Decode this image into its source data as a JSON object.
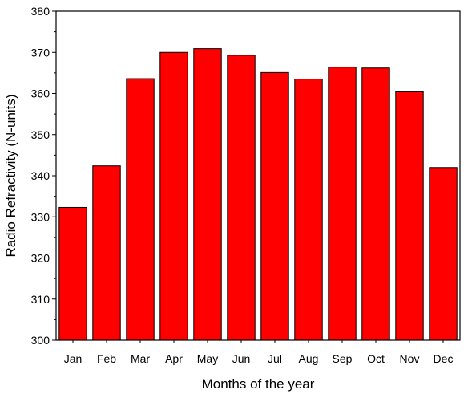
{
  "chart_data": {
    "type": "bar",
    "categories": [
      "Jan",
      "Feb",
      "Mar",
      "Apr",
      "May",
      "Jun",
      "Jul",
      "Aug",
      "Sep",
      "Oct",
      "Nov",
      "Dec"
    ],
    "values": [
      332.3,
      342.4,
      363.6,
      370.0,
      370.9,
      369.3,
      365.1,
      363.5,
      366.4,
      366.2,
      360.4,
      342.0
    ],
    "xlabel": "Months of the year",
    "ylabel": "Radio Refractivity (N-units)",
    "ylim": [
      300,
      380
    ],
    "yticks": [
      300,
      310,
      320,
      330,
      340,
      350,
      360,
      370,
      380
    ],
    "bar_color": "#ff0000",
    "bar_edge_color": "#000000",
    "grid": false,
    "legend": "none"
  }
}
